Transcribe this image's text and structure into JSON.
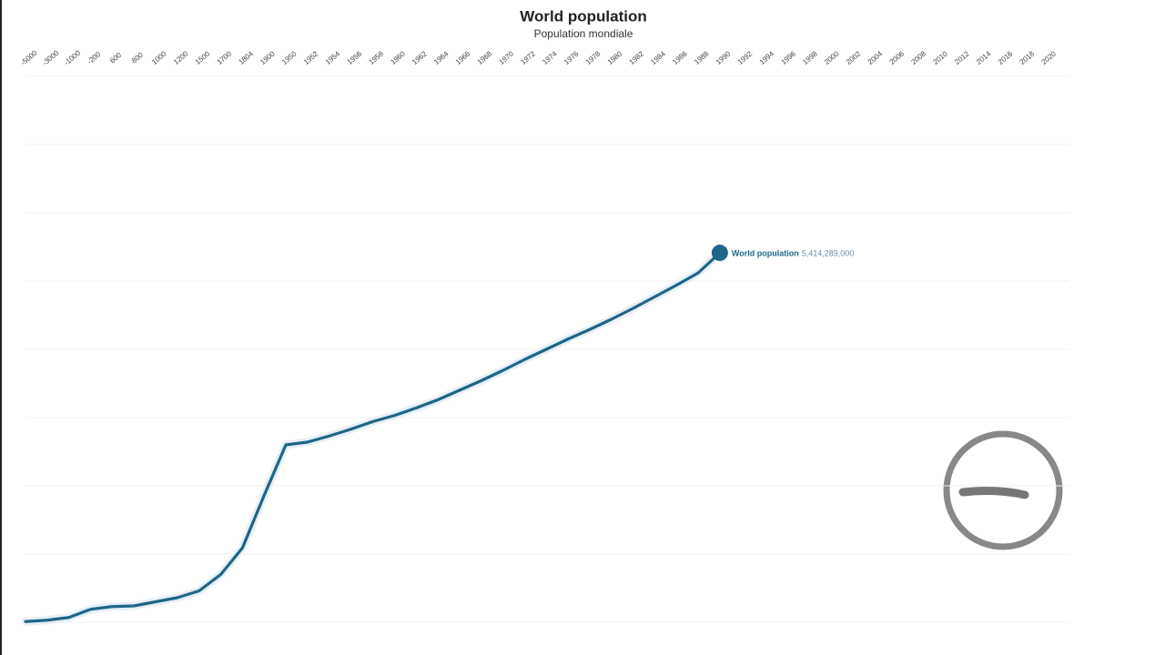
{
  "chart_data": {
    "type": "line",
    "title": "World population",
    "subtitle": "Population mondiale",
    "categories": [
      "-5000",
      "-3000",
      "-1000",
      "-200",
      "600",
      "800",
      "1000",
      "1200",
      "1500",
      "1700",
      "1804",
      "1900",
      "1950",
      "1952",
      "1954",
      "1956",
      "1958",
      "1960",
      "1962",
      "1964",
      "1966",
      "1968",
      "1970",
      "1972",
      "1974",
      "1976",
      "1978",
      "1980",
      "1982",
      "1984",
      "1986",
      "1988",
      "1990",
      "1992",
      "1994",
      "1996",
      "1998",
      "2000",
      "2002",
      "2004",
      "2006",
      "2008",
      "2010",
      "2012",
      "2014",
      "2016",
      "2018",
      "2020"
    ],
    "series": [
      {
        "name": "World population",
        "color": "#1f6688",
        "values": [
          10000000,
          30000000,
          70000000,
          190000000,
          230000000,
          240000000,
          300000000,
          360000000,
          460000000,
          700000000,
          1090000000,
          1860000000,
          2600000000,
          2640000000,
          2730000000,
          2830000000,
          2940000000,
          3030000000,
          3140000000,
          3260000000,
          3400000000,
          3540000000,
          3690000000,
          3850000000,
          4000000000,
          4150000000,
          4290000000,
          4440000000,
          4600000000,
          4770000000,
          4940000000,
          5120000000,
          5414289000,
          null,
          null,
          null,
          null,
          null,
          null,
          null,
          null,
          null,
          null,
          null,
          null,
          null,
          null,
          null
        ],
        "value_labels": [
          null,
          null,
          null,
          null,
          null,
          null,
          null,
          null,
          null,
          null,
          null,
          null,
          null,
          null,
          null,
          null,
          null,
          null,
          null,
          null,
          null,
          null,
          null,
          null,
          null,
          null,
          null,
          null,
          null,
          null,
          null,
          null,
          "5,414,289,000",
          null,
          null,
          null,
          null,
          null,
          null,
          null,
          null,
          null,
          null,
          null,
          null,
          null,
          null,
          null
        ]
      }
    ],
    "ylim": [
      0,
      8000000000
    ],
    "yticks": [
      0,
      1000000000,
      2000000000,
      3000000000,
      4000000000,
      5000000000,
      6000000000,
      7000000000,
      8000000000
    ],
    "grid": true
  }
}
